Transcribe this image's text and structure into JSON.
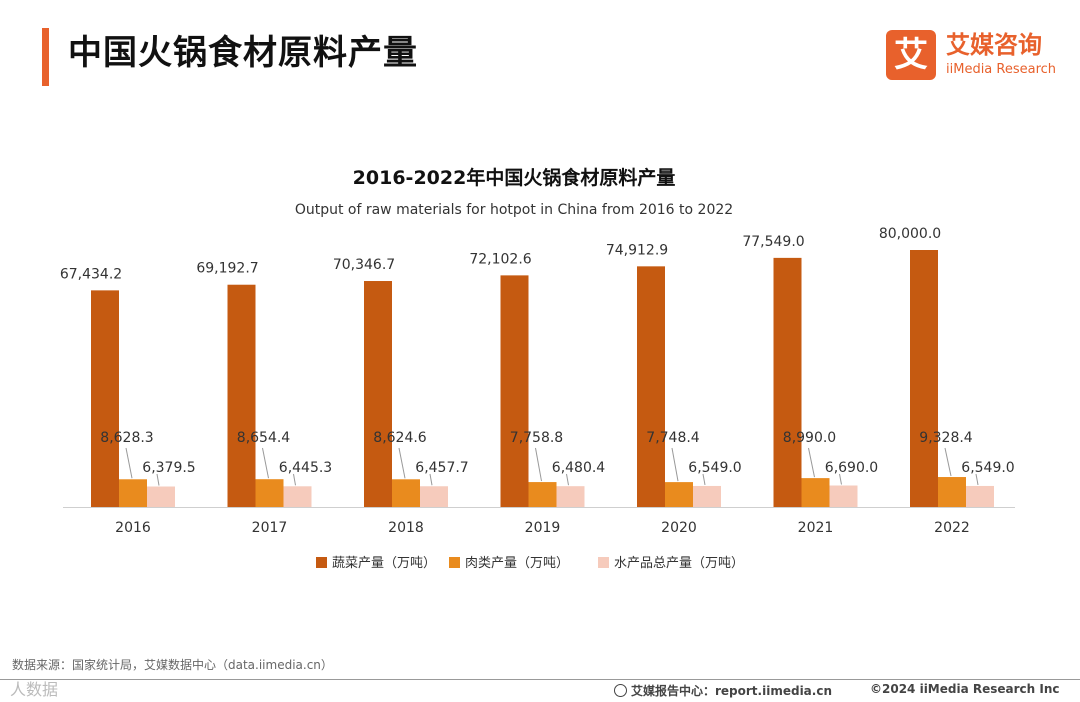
{
  "header": {
    "title": "中国火锅食材原料产量",
    "logo_mark": "艾",
    "logo_cn": "艾媒咨询",
    "logo_en": "iiMedia Research"
  },
  "chart_data": {
    "type": "bar",
    "title": "2016-2022年中国火锅食材原料产量",
    "subtitle": "Output of raw materials for hotpot in China from 2016 to 2022",
    "categories": [
      "2016",
      "2017",
      "2018",
      "2019",
      "2020",
      "2021",
      "2022"
    ],
    "series": [
      {
        "name": "蔬菜产量（万吨）",
        "color": "#C55A11",
        "values": [
          67434.2,
          69192.7,
          70346.7,
          72102.6,
          74912.9,
          77549.0,
          80000.0
        ],
        "labels": [
          "67,434.2",
          "69,192.7",
          "70,346.7",
          "72,102.6",
          "74,912.9",
          "77,549.0",
          "80,000.0"
        ]
      },
      {
        "name": "肉类产量（万吨）",
        "color": "#E98B1E",
        "values": [
          8628.3,
          8654.4,
          8624.6,
          7758.8,
          7748.4,
          8990.0,
          9328.4
        ],
        "labels": [
          "8,628.3",
          "8,654.4",
          "8,624.6",
          "7,758.8",
          "7,748.4",
          "8,990.0",
          "9,328.4"
        ]
      },
      {
        "name": "水产品总产量（万吨）",
        "color": "#F6CBBC",
        "values": [
          6379.5,
          6445.3,
          6457.7,
          6480.4,
          6549.0,
          6690.0,
          6549.0
        ],
        "labels": [
          "6,379.5",
          "6,445.3",
          "6,457.7",
          "6,480.4",
          "6,549.0",
          "6,690.0",
          "6,549.0"
        ]
      }
    ],
    "ylim": [
      0,
      80000
    ],
    "grid": false,
    "legend_position": "bottom"
  },
  "footer": {
    "source": "数据来源：国家统计局，艾媒数据中心（data.iimedia.cn）",
    "watermark": "人数据",
    "report": "艾媒报告中心：report.iimedia.cn",
    "copyright": "©2024  iiMedia Research  Inc"
  }
}
